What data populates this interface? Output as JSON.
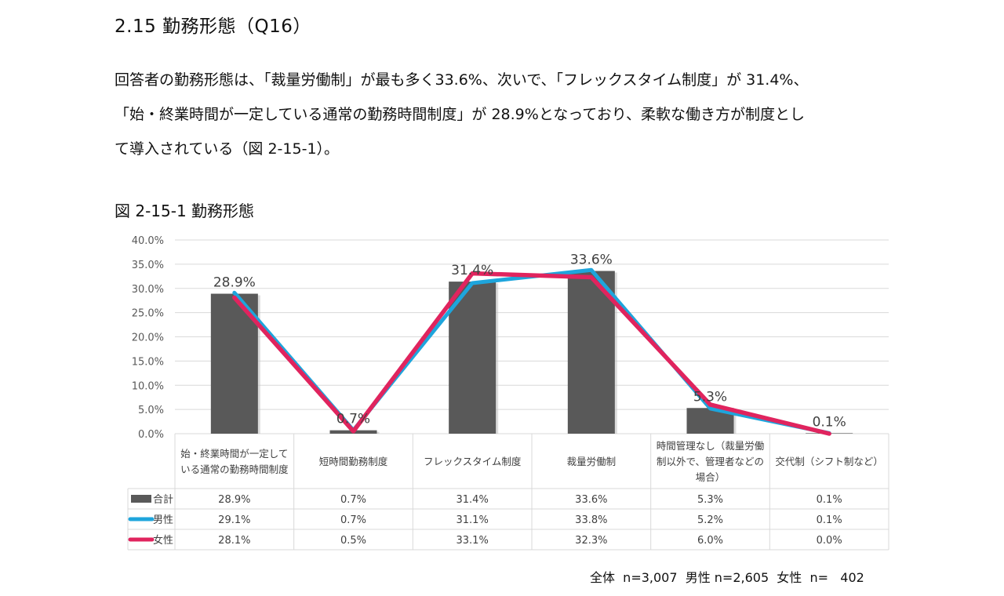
{
  "section_title": "2.15 勤務形態（Q16）",
  "paragraph_lines": [
    "回答者の勤務形態は、「裁量労働制」が最も多く33.6%、次いで、「フレックスタイム制度」が 31.4%、",
    "「始・終業時間が一定している通常の勤務時間制度」が 28.9%となっており、柔軟な働き方が制度とし",
    "て導入されている（図 2-15-1）。"
  ],
  "figure_title": "図 2-15-1 勤務形態",
  "footnote": "全体  n=3,007  男性 n=2,605  女性  n=   402",
  "colors": {
    "bar": "#595959",
    "male": "#1ea5dc",
    "female": "#e0245e",
    "grid": "#d9d9d9"
  },
  "chart_data": {
    "type": "bar",
    "categories": [
      [
        "始・終業時間が一定して",
        "いる通常の勤務時間制度"
      ],
      [
        "短時間勤務制度"
      ],
      [
        "フレックスタイム制度"
      ],
      [
        "裁量労働制"
      ],
      [
        "時間管理なし（裁量労働",
        "制以外で、管理者などの",
        "場合）"
      ],
      [
        "交代制（シフト制など）"
      ]
    ],
    "ylim": [
      0,
      40
    ],
    "yticks": [
      "0.0%",
      "5.0%",
      "10.0%",
      "15.0%",
      "20.0%",
      "25.0%",
      "30.0%",
      "35.0%",
      "40.0%"
    ],
    "grid": true,
    "series": [
      {
        "name": "合計",
        "type": "bar",
        "values": [
          28.9,
          0.7,
          31.4,
          33.6,
          5.3,
          0.1
        ],
        "labels": [
          "28.9%",
          "0.7%",
          "31.4%",
          "33.6%",
          "5.3%",
          "0.1%"
        ]
      },
      {
        "name": "男性",
        "type": "line",
        "values": [
          29.1,
          0.7,
          31.1,
          33.8,
          5.2,
          0.1
        ],
        "labels": [
          "29.1%",
          "0.7%",
          "31.1%",
          "33.8%",
          "5.2%",
          "0.1%"
        ]
      },
      {
        "name": "女性",
        "type": "line",
        "values": [
          28.1,
          0.5,
          33.1,
          32.3,
          6.0,
          0.0
        ],
        "labels": [
          "28.1%",
          "0.5%",
          "33.1%",
          "32.3%",
          "6.0%",
          "0.0%"
        ]
      }
    ]
  }
}
